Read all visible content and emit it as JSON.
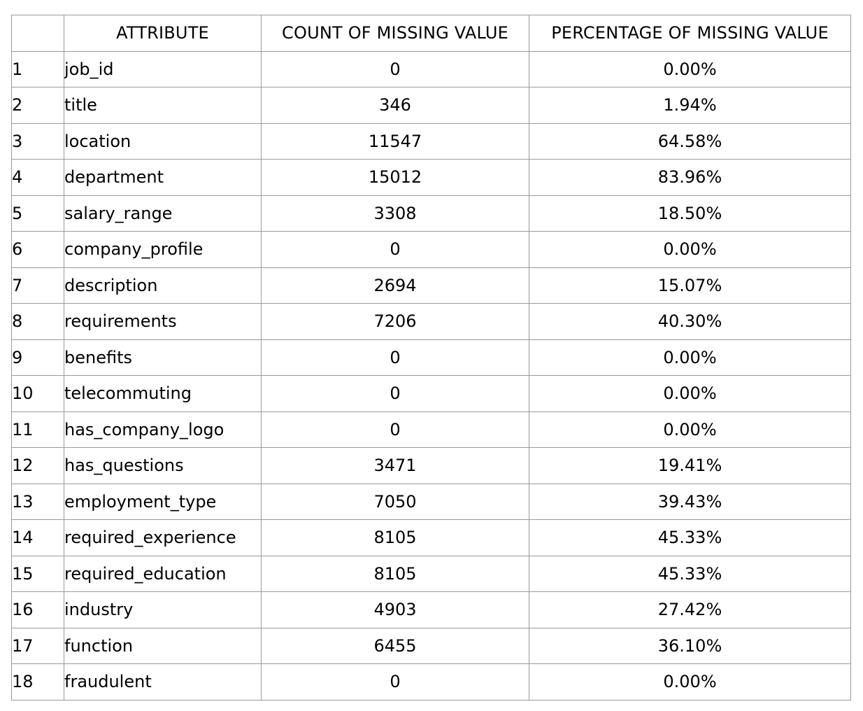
{
  "table": {
    "headers": [
      "",
      "ATTRIBUTE",
      "COUNT OF MISSING VALUE",
      "PERCENTAGE OF MISSING VALUE"
    ],
    "rows": [
      {
        "no": "1",
        "attribute": "job_id",
        "count": "0",
        "percentage": "0.00%"
      },
      {
        "no": "2",
        "attribute": "title",
        "count": "346",
        "percentage": "1.94%"
      },
      {
        "no": "3",
        "attribute": "location",
        "count": "11547",
        "percentage": "64.58%"
      },
      {
        "no": "4",
        "attribute": "department",
        "count": "15012",
        "percentage": "83.96%"
      },
      {
        "no": "5",
        "attribute": "salary_range",
        "count": "3308",
        "percentage": "18.50%"
      },
      {
        "no": "6",
        "attribute": "company_profile",
        "count": "0",
        "percentage": "0.00%"
      },
      {
        "no": "7",
        "attribute": "description",
        "count": "2694",
        "percentage": "15.07%"
      },
      {
        "no": "8",
        "attribute": "requirements",
        "count": "7206",
        "percentage": "40.30%"
      },
      {
        "no": "9",
        "attribute": "benefits",
        "count": "0",
        "percentage": "0.00%"
      },
      {
        "no": "10",
        "attribute": "telecommuting",
        "count": "0",
        "percentage": "0.00%"
      },
      {
        "no": "11",
        "attribute": "has_company_logo",
        "count": "0",
        "percentage": "0.00%"
      },
      {
        "no": "12",
        "attribute": "has_questions",
        "count": "3471",
        "percentage": "19.41%"
      },
      {
        "no": "13",
        "attribute": "employment_type",
        "count": "7050",
        "percentage": "39.43%"
      },
      {
        "no": "14",
        "attribute": "required_experience",
        "count": "8105",
        "percentage": "45.33%"
      },
      {
        "no": "15",
        "attribute": "required_education",
        "count": "8105",
        "percentage": "45.33%"
      },
      {
        "no": "16",
        "attribute": "industry",
        "count": "4903",
        "percentage": "27.42%"
      },
      {
        "no": "17",
        "attribute": "function",
        "count": "6455",
        "percentage": "36.10%"
      },
      {
        "no": "18",
        "attribute": "fraudulent",
        "count": "0",
        "percentage": "0.00%"
      }
    ]
  }
}
